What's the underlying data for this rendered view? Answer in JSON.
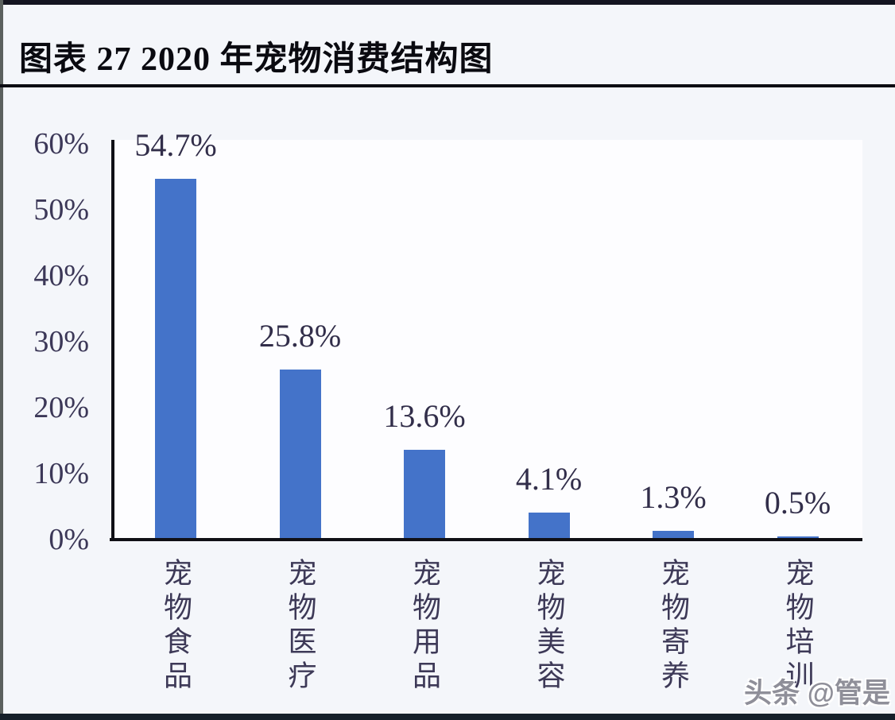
{
  "page": {
    "title": "图表 27 2020 年宠物消费结构图",
    "watermark": "头条 @管是"
  },
  "colors": {
    "bar_fill": "#4473c9",
    "axis_line": "#101016",
    "tick_text": "#3c3858",
    "value_text": "#322e4a",
    "category_text": "#3d3957",
    "title_text": "#0a0a10",
    "watermark_text": "#8f8f99"
  },
  "chart_data": {
    "type": "bar",
    "title": "图表 27 2020 年宠物消费结构图",
    "categories": [
      "宠物食品",
      "宠物医疗",
      "宠物用品",
      "宠物美容",
      "宠物寄养",
      "宠物培训"
    ],
    "values": [
      54.7,
      25.8,
      13.6,
      4.1,
      1.3,
      0.5
    ],
    "value_labels": [
      "54.7%",
      "25.8%",
      "13.6%",
      "4.1%",
      "1.3%",
      "0.5%"
    ],
    "xlabel": "",
    "ylabel": "",
    "ylim": [
      0,
      60
    ],
    "yticks": [
      {
        "label": "60%",
        "value": 60
      },
      {
        "label": "50%",
        "value": 50
      },
      {
        "label": "40%",
        "value": 40
      },
      {
        "label": "30%",
        "value": 30
      },
      {
        "label": "20%",
        "value": 20
      },
      {
        "label": "10%",
        "value": 10
      },
      {
        "label": "0%",
        "value": 0
      }
    ],
    "grid": false,
    "legend": null
  }
}
